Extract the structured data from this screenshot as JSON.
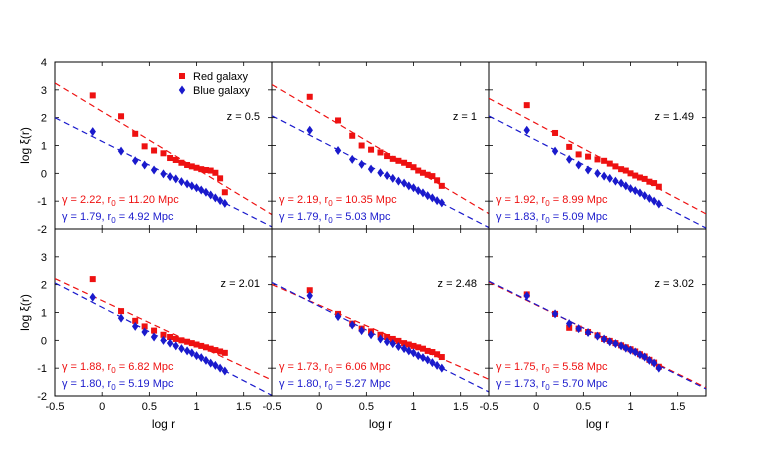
{
  "chart_data": {
    "type": "scatter",
    "layout": "2x3 grid of panels sharing axes",
    "xlabel": "log r",
    "ylabel": "log ξ(r)",
    "xlim": [
      -0.5,
      1.8
    ],
    "ylim": [
      -2,
      4
    ],
    "xticks": [
      -0.5,
      0,
      0.5,
      1,
      1.5
    ],
    "xtick_labels": [
      "-0.5",
      "0",
      "0.5",
      "1",
      "1.5"
    ],
    "yticks": [
      -2,
      -1,
      0,
      1,
      2,
      3,
      4
    ],
    "ytick_labels_top": [
      "-2",
      "-1",
      "0",
      "1",
      "2",
      "3",
      "4"
    ],
    "ytick_labels_bottom": [
      "-2",
      "-1",
      "0",
      "1",
      "2",
      "3"
    ],
    "colors": {
      "red": "#ee1111",
      "blue": "#1a1acc"
    },
    "legend": [
      {
        "name": "Red galaxy",
        "marker": "square",
        "color": "#ee1111"
      },
      {
        "name": "Blue galaxy",
        "marker": "diamond",
        "color": "#1a1acc"
      }
    ],
    "x": [
      -0.1,
      0.2,
      0.35,
      0.45,
      0.55,
      0.65,
      0.72,
      0.78,
      0.84,
      0.9,
      0.95,
      1.0,
      1.05,
      1.1,
      1.15,
      1.2,
      1.25,
      1.3
    ],
    "panels": [
      {
        "label": "z = 0.5",
        "red_fit": {
          "gamma_label": "γ = 2.22, r",
          "sub": "0",
          "r0_label": " = 11.20 Mpc",
          "gamma": 2.22,
          "r0": 11.2
        },
        "blue_fit": {
          "gamma_label": "γ = 1.79, r",
          "sub": "0",
          "r0_label": " = 4.92 Mpc",
          "gamma": 1.79,
          "r0": 4.92
        },
        "red": [
          2.8,
          2.05,
          1.42,
          0.97,
          0.82,
          0.72,
          0.55,
          0.48,
          0.38,
          0.3,
          0.25,
          0.2,
          0.15,
          0.12,
          0.1,
          0.02,
          -0.18,
          -0.68
        ],
        "blue": [
          1.5,
          0.8,
          0.45,
          0.3,
          0.12,
          -0.02,
          -0.12,
          -0.2,
          -0.3,
          -0.38,
          -0.45,
          -0.52,
          -0.6,
          -0.68,
          -0.78,
          -0.88,
          -0.98,
          -1.08
        ]
      },
      {
        "label": "z = 1",
        "red_fit": {
          "gamma_label": "γ = 2.19, r",
          "sub": "0",
          "r0_label": " = 10.35 Mpc",
          "gamma": 2.19,
          "r0": 10.35
        },
        "blue_fit": {
          "gamma_label": "γ = 1.79, r",
          "sub": "0",
          "r0_label": " = 5.03 Mpc",
          "gamma": 1.79,
          "r0": 5.03
        },
        "red": [
          2.75,
          1.9,
          1.35,
          1.0,
          0.85,
          0.75,
          0.62,
          0.52,
          0.45,
          0.38,
          0.3,
          0.22,
          0.1,
          0.02,
          -0.05,
          -0.1,
          -0.25,
          -0.45
        ],
        "blue": [
          1.55,
          0.82,
          0.5,
          0.32,
          0.15,
          0.02,
          -0.08,
          -0.18,
          -0.28,
          -0.35,
          -0.45,
          -0.52,
          -0.62,
          -0.7,
          -0.8,
          -0.88,
          -0.98,
          -1.06
        ]
      },
      {
        "label": "z = 1.49",
        "red_fit": {
          "gamma_label": "γ = 1.92, r",
          "sub": "0",
          "r0_label": " = 8.99 Mpc",
          "gamma": 1.92,
          "r0": 8.99
        },
        "blue_fit": {
          "gamma_label": "γ = 1.83, r",
          "sub": "0",
          "r0_label": " = 5.09 Mpc",
          "gamma": 1.83,
          "r0": 5.09
        },
        "red": [
          2.45,
          1.45,
          0.95,
          0.68,
          0.6,
          0.5,
          0.45,
          0.35,
          0.25,
          0.15,
          0.1,
          0.0,
          -0.08,
          -0.15,
          -0.2,
          -0.3,
          -0.35,
          -0.48
        ],
        "blue": [
          1.55,
          0.8,
          0.5,
          0.3,
          0.12,
          0.0,
          -0.1,
          -0.18,
          -0.28,
          -0.35,
          -0.45,
          -0.55,
          -0.62,
          -0.7,
          -0.8,
          -0.9,
          -1.0,
          -1.1
        ]
      },
      {
        "label": "z = 2.01",
        "red_fit": {
          "gamma_label": "γ = 1.88, r",
          "sub": "0",
          "r0_label": " = 6.82 Mpc",
          "gamma": 1.88,
          "r0": 6.82
        },
        "blue_fit": {
          "gamma_label": "γ = 1.80, r",
          "sub": "0",
          "r0_label": " = 5.19 Mpc",
          "gamma": 1.8,
          "r0": 5.19
        },
        "red": [
          2.2,
          1.05,
          0.7,
          0.5,
          0.35,
          0.2,
          0.12,
          0.05,
          0.0,
          -0.05,
          -0.1,
          -0.15,
          -0.2,
          -0.25,
          -0.3,
          -0.35,
          -0.4,
          -0.45
        ],
        "blue": [
          1.55,
          0.8,
          0.5,
          0.3,
          0.12,
          0.0,
          -0.1,
          -0.2,
          -0.3,
          -0.38,
          -0.45,
          -0.55,
          -0.62,
          -0.72,
          -0.82,
          -0.9,
          -1.0,
          -1.1
        ]
      },
      {
        "label": "z = 2.48",
        "red_fit": {
          "gamma_label": "γ = 1.73, r",
          "sub": "0",
          "r0_label": " = 6.06 Mpc",
          "gamma": 1.73,
          "r0": 6.06
        },
        "blue_fit": {
          "gamma_label": "γ = 1.80, r",
          "sub": "0",
          "r0_label": " = 5.27 Mpc",
          "gamma": 1.8,
          "r0": 5.27
        },
        "red": [
          1.8,
          0.95,
          0.6,
          0.42,
          0.32,
          0.2,
          0.12,
          0.05,
          -0.02,
          -0.1,
          -0.15,
          -0.2,
          -0.25,
          -0.3,
          -0.38,
          -0.42,
          -0.5,
          -0.6
        ],
        "blue": [
          1.6,
          0.85,
          0.55,
          0.35,
          0.2,
          0.05,
          -0.05,
          -0.12,
          -0.22,
          -0.3,
          -0.38,
          -0.45,
          -0.55,
          -0.62,
          -0.7,
          -0.8,
          -0.9,
          -1.0
        ]
      },
      {
        "label": "z = 3.02",
        "red_fit": {
          "gamma_label": "γ = 1.75, r",
          "sub": "0",
          "r0_label": " = 5.58 Mpc",
          "gamma": 1.75,
          "r0": 5.58
        },
        "blue_fit": {
          "gamma_label": "γ = 1.73, r",
          "sub": "0",
          "r0_label": " = 5.70 Mpc",
          "gamma": 1.73,
          "r0": 5.7
        },
        "red": [
          1.65,
          0.95,
          0.45,
          0.42,
          0.3,
          0.18,
          0.05,
          -0.02,
          -0.1,
          -0.18,
          -0.25,
          -0.32,
          -0.4,
          -0.5,
          -0.58,
          -0.7,
          -0.8,
          -0.95
        ],
        "blue": [
          1.6,
          0.95,
          0.6,
          0.42,
          0.28,
          0.15,
          0.05,
          -0.05,
          -0.12,
          -0.2,
          -0.28,
          -0.35,
          -0.42,
          -0.52,
          -0.6,
          -0.72,
          -0.82,
          -1.0
        ]
      }
    ]
  }
}
